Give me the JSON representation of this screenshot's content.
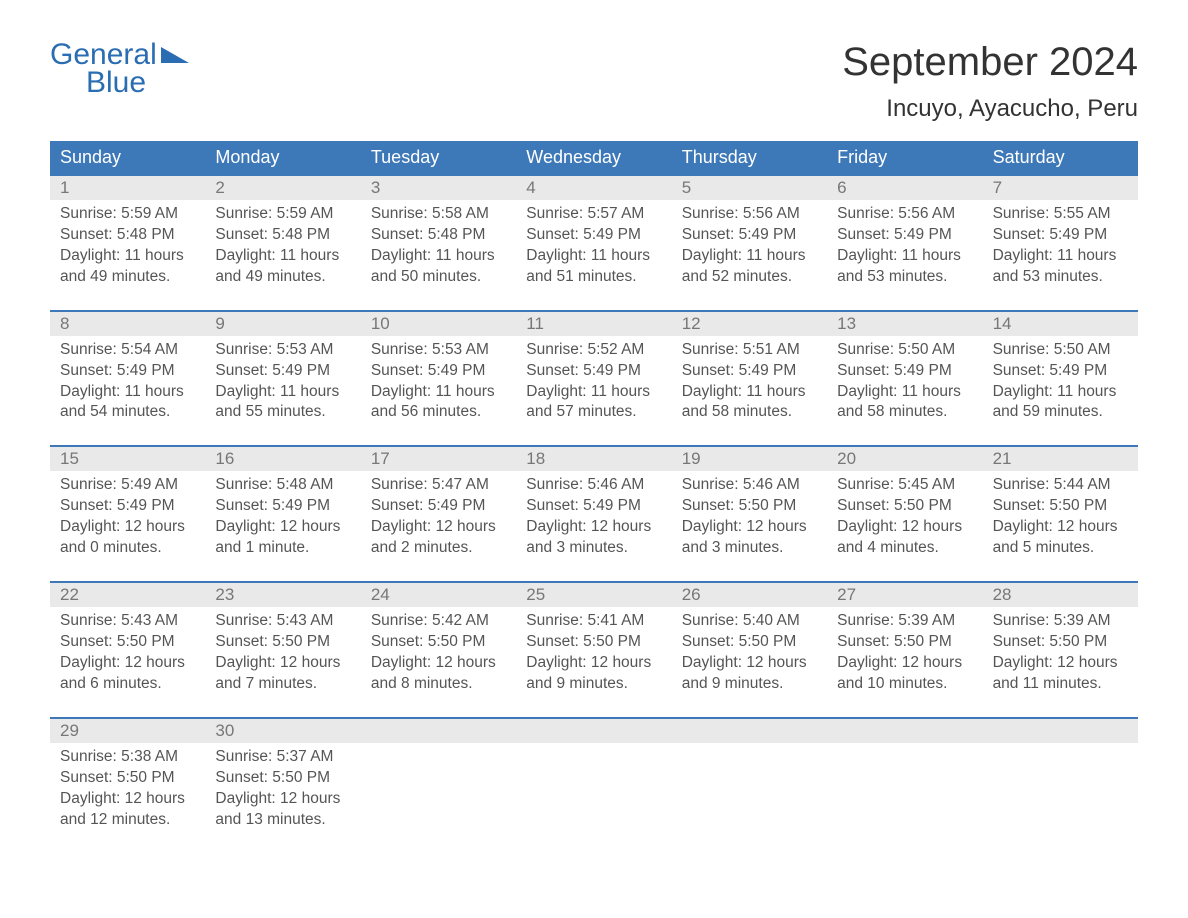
{
  "logo": {
    "line1": "General",
    "line2": "Blue"
  },
  "title": "September 2024",
  "location": "Incuyo, Ayacucho, Peru",
  "colors": {
    "header_bg": "#3d78b8",
    "header_text": "#ffffff",
    "daynum_bg": "#e9e9e9",
    "daynum_text": "#777777",
    "body_text": "#555555",
    "logo_color": "#2a6db2",
    "border": "#3d78b8"
  },
  "day_names": [
    "Sunday",
    "Monday",
    "Tuesday",
    "Wednesday",
    "Thursday",
    "Friday",
    "Saturday"
  ],
  "weeks": [
    [
      {
        "n": "1",
        "sr": "5:59 AM",
        "ss": "5:48 PM",
        "dl": "11 hours and 49 minutes."
      },
      {
        "n": "2",
        "sr": "5:59 AM",
        "ss": "5:48 PM",
        "dl": "11 hours and 49 minutes."
      },
      {
        "n": "3",
        "sr": "5:58 AM",
        "ss": "5:48 PM",
        "dl": "11 hours and 50 minutes."
      },
      {
        "n": "4",
        "sr": "5:57 AM",
        "ss": "5:49 PM",
        "dl": "11 hours and 51 minutes."
      },
      {
        "n": "5",
        "sr": "5:56 AM",
        "ss": "5:49 PM",
        "dl": "11 hours and 52 minutes."
      },
      {
        "n": "6",
        "sr": "5:56 AM",
        "ss": "5:49 PM",
        "dl": "11 hours and 53 minutes."
      },
      {
        "n": "7",
        "sr": "5:55 AM",
        "ss": "5:49 PM",
        "dl": "11 hours and 53 minutes."
      }
    ],
    [
      {
        "n": "8",
        "sr": "5:54 AM",
        "ss": "5:49 PM",
        "dl": "11 hours and 54 minutes."
      },
      {
        "n": "9",
        "sr": "5:53 AM",
        "ss": "5:49 PM",
        "dl": "11 hours and 55 minutes."
      },
      {
        "n": "10",
        "sr": "5:53 AM",
        "ss": "5:49 PM",
        "dl": "11 hours and 56 minutes."
      },
      {
        "n": "11",
        "sr": "5:52 AM",
        "ss": "5:49 PM",
        "dl": "11 hours and 57 minutes."
      },
      {
        "n": "12",
        "sr": "5:51 AM",
        "ss": "5:49 PM",
        "dl": "11 hours and 58 minutes."
      },
      {
        "n": "13",
        "sr": "5:50 AM",
        "ss": "5:49 PM",
        "dl": "11 hours and 58 minutes."
      },
      {
        "n": "14",
        "sr": "5:50 AM",
        "ss": "5:49 PM",
        "dl": "11 hours and 59 minutes."
      }
    ],
    [
      {
        "n": "15",
        "sr": "5:49 AM",
        "ss": "5:49 PM",
        "dl": "12 hours and 0 minutes."
      },
      {
        "n": "16",
        "sr": "5:48 AM",
        "ss": "5:49 PM",
        "dl": "12 hours and 1 minute."
      },
      {
        "n": "17",
        "sr": "5:47 AM",
        "ss": "5:49 PM",
        "dl": "12 hours and 2 minutes."
      },
      {
        "n": "18",
        "sr": "5:46 AM",
        "ss": "5:49 PM",
        "dl": "12 hours and 3 minutes."
      },
      {
        "n": "19",
        "sr": "5:46 AM",
        "ss": "5:50 PM",
        "dl": "12 hours and 3 minutes."
      },
      {
        "n": "20",
        "sr": "5:45 AM",
        "ss": "5:50 PM",
        "dl": "12 hours and 4 minutes."
      },
      {
        "n": "21",
        "sr": "5:44 AM",
        "ss": "5:50 PM",
        "dl": "12 hours and 5 minutes."
      }
    ],
    [
      {
        "n": "22",
        "sr": "5:43 AM",
        "ss": "5:50 PM",
        "dl": "12 hours and 6 minutes."
      },
      {
        "n": "23",
        "sr": "5:43 AM",
        "ss": "5:50 PM",
        "dl": "12 hours and 7 minutes."
      },
      {
        "n": "24",
        "sr": "5:42 AM",
        "ss": "5:50 PM",
        "dl": "12 hours and 8 minutes."
      },
      {
        "n": "25",
        "sr": "5:41 AM",
        "ss": "5:50 PM",
        "dl": "12 hours and 9 minutes."
      },
      {
        "n": "26",
        "sr": "5:40 AM",
        "ss": "5:50 PM",
        "dl": "12 hours and 9 minutes."
      },
      {
        "n": "27",
        "sr": "5:39 AM",
        "ss": "5:50 PM",
        "dl": "12 hours and 10 minutes."
      },
      {
        "n": "28",
        "sr": "5:39 AM",
        "ss": "5:50 PM",
        "dl": "12 hours and 11 minutes."
      }
    ],
    [
      {
        "n": "29",
        "sr": "5:38 AM",
        "ss": "5:50 PM",
        "dl": "12 hours and 12 minutes."
      },
      {
        "n": "30",
        "sr": "5:37 AM",
        "ss": "5:50 PM",
        "dl": "12 hours and 13 minutes."
      },
      null,
      null,
      null,
      null,
      null
    ]
  ],
  "labels": {
    "sunrise": "Sunrise: ",
    "sunset": "Sunset: ",
    "daylight": "Daylight: "
  }
}
